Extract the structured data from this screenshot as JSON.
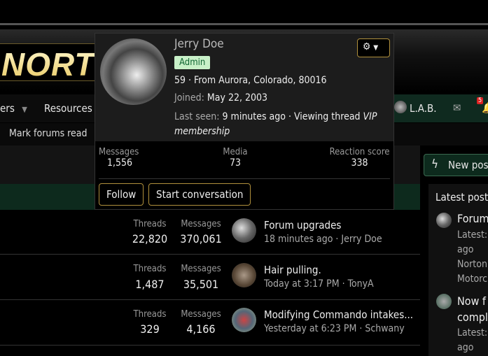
{
  "header": {
    "logo_text": "NORT"
  },
  "nav": {
    "items": [
      {
        "label": "ers"
      },
      {
        "label": "Resources"
      }
    ],
    "user": "L.A.B.",
    "notification_count": "5"
  },
  "subnav": {
    "mark_read": "Mark forums read"
  },
  "new_posts": "New pos",
  "popup": {
    "name": "Jerry Doe",
    "badge": "Admin",
    "info": "59 · From Aurora, Colorado, 80016",
    "joined_label": "Joined:",
    "joined": "May 22, 2003",
    "last_seen_label": "Last seen:",
    "last_seen": "9 minutes ago · Viewing thread",
    "thread": "VIP membership",
    "stats": [
      {
        "label": "Messages",
        "value": "1,556"
      },
      {
        "label": "Media",
        "value": "73"
      },
      {
        "label": "Reaction score",
        "value": "338"
      }
    ],
    "follow": "Follow",
    "start_conversation": "Start conversation"
  },
  "forums": [
    {
      "threads_label": "Threads",
      "threads": "22,820",
      "messages_label": "Messages",
      "messages": "370,061",
      "title": "Forum upgrades",
      "meta": "18 minutes ago · Jerry Doe"
    },
    {
      "threads_label": "Threads",
      "threads": "1,487",
      "messages_label": "Messages",
      "messages": "35,501",
      "title": "Hair pulling.",
      "meta": "Today at 3:17 PM · TonyA"
    },
    {
      "threads_label": "Threads",
      "threads": "329",
      "messages_label": "Messages",
      "messages": "4,166",
      "title": "Modifying Commando intakes...",
      "meta": "Yesterday at 6:23 PM · Schwany"
    }
  ],
  "sidebar": {
    "title": "Latest post",
    "items": [
      {
        "title": "Forum",
        "lines": [
          "Latest:",
          "ago",
          "Norton",
          "Motorc"
        ]
      },
      {
        "title": "Now f",
        "title2": "compl",
        "lines": [
          "Latest:",
          "ago"
        ]
      }
    ]
  }
}
